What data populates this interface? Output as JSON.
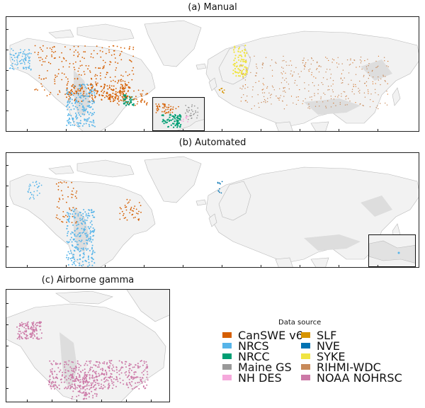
{
  "panels": {
    "a": {
      "title": "(a) Manual"
    },
    "b": {
      "title": "(b) Automated"
    },
    "c": {
      "title": "(c) Airborne gamma"
    }
  },
  "legend": {
    "title": "Data source",
    "items": [
      {
        "label": "CanSWE v6",
        "color": "#d55e00"
      },
      {
        "label": "NRCS",
        "color": "#56b4e9"
      },
      {
        "label": "NRCC",
        "color": "#009e73"
      },
      {
        "label": "Maine GS",
        "color": "#999999"
      },
      {
        "label": "NH DES",
        "color": "#f5a9dc"
      },
      {
        "label": "SLF",
        "color": "#d69400"
      },
      {
        "label": "NVE",
        "color": "#0072b2"
      },
      {
        "label": "SYKE",
        "color": "#f0e442"
      },
      {
        "label": "RIHMI-WDC",
        "color": "#c88a5a"
      },
      {
        "label": "NOAA NOHRSC",
        "color": "#cc79a7"
      }
    ]
  },
  "colors": {
    "land": "#f2f2f2",
    "land_edge": "#b9b9b9",
    "mountain": "#dddddd",
    "frame": "#222222"
  }
}
